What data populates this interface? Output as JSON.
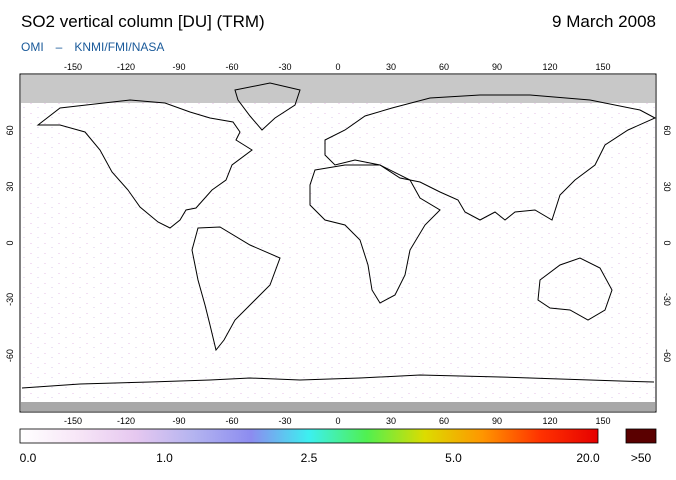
{
  "header": {
    "title": "SO2 vertical column [DU] (TRM)",
    "date": "9 March 2008",
    "credit_left": "OMI",
    "credit_sep": "–",
    "credit_right": "KNMI/FMI/NASA"
  },
  "map": {
    "projection": "equirectangular",
    "lon_ticks": [
      "-150",
      "-120",
      "-90",
      "-60",
      "-30",
      "0",
      "30",
      "60",
      "90",
      "120",
      "150"
    ],
    "lat_ticks": [
      "60",
      "30",
      "0",
      "-30",
      "-60"
    ],
    "no_data_color": "#c8c8c8",
    "land_outline_color": "#000000"
  },
  "colorbar": {
    "labels": [
      "0.0",
      "1.0",
      "2.5",
      "5.0",
      "20.0"
    ],
    "overflow_label": ">50",
    "overflow_color": "#5a0000",
    "stops": [
      "#ffffff",
      "#f7e6f7",
      "#e6c8f0",
      "#b4b4f0",
      "#8c8cf0",
      "#3cf0f0",
      "#50f050",
      "#dcdc00",
      "#ff9600",
      "#ff3200",
      "#e60000"
    ]
  }
}
